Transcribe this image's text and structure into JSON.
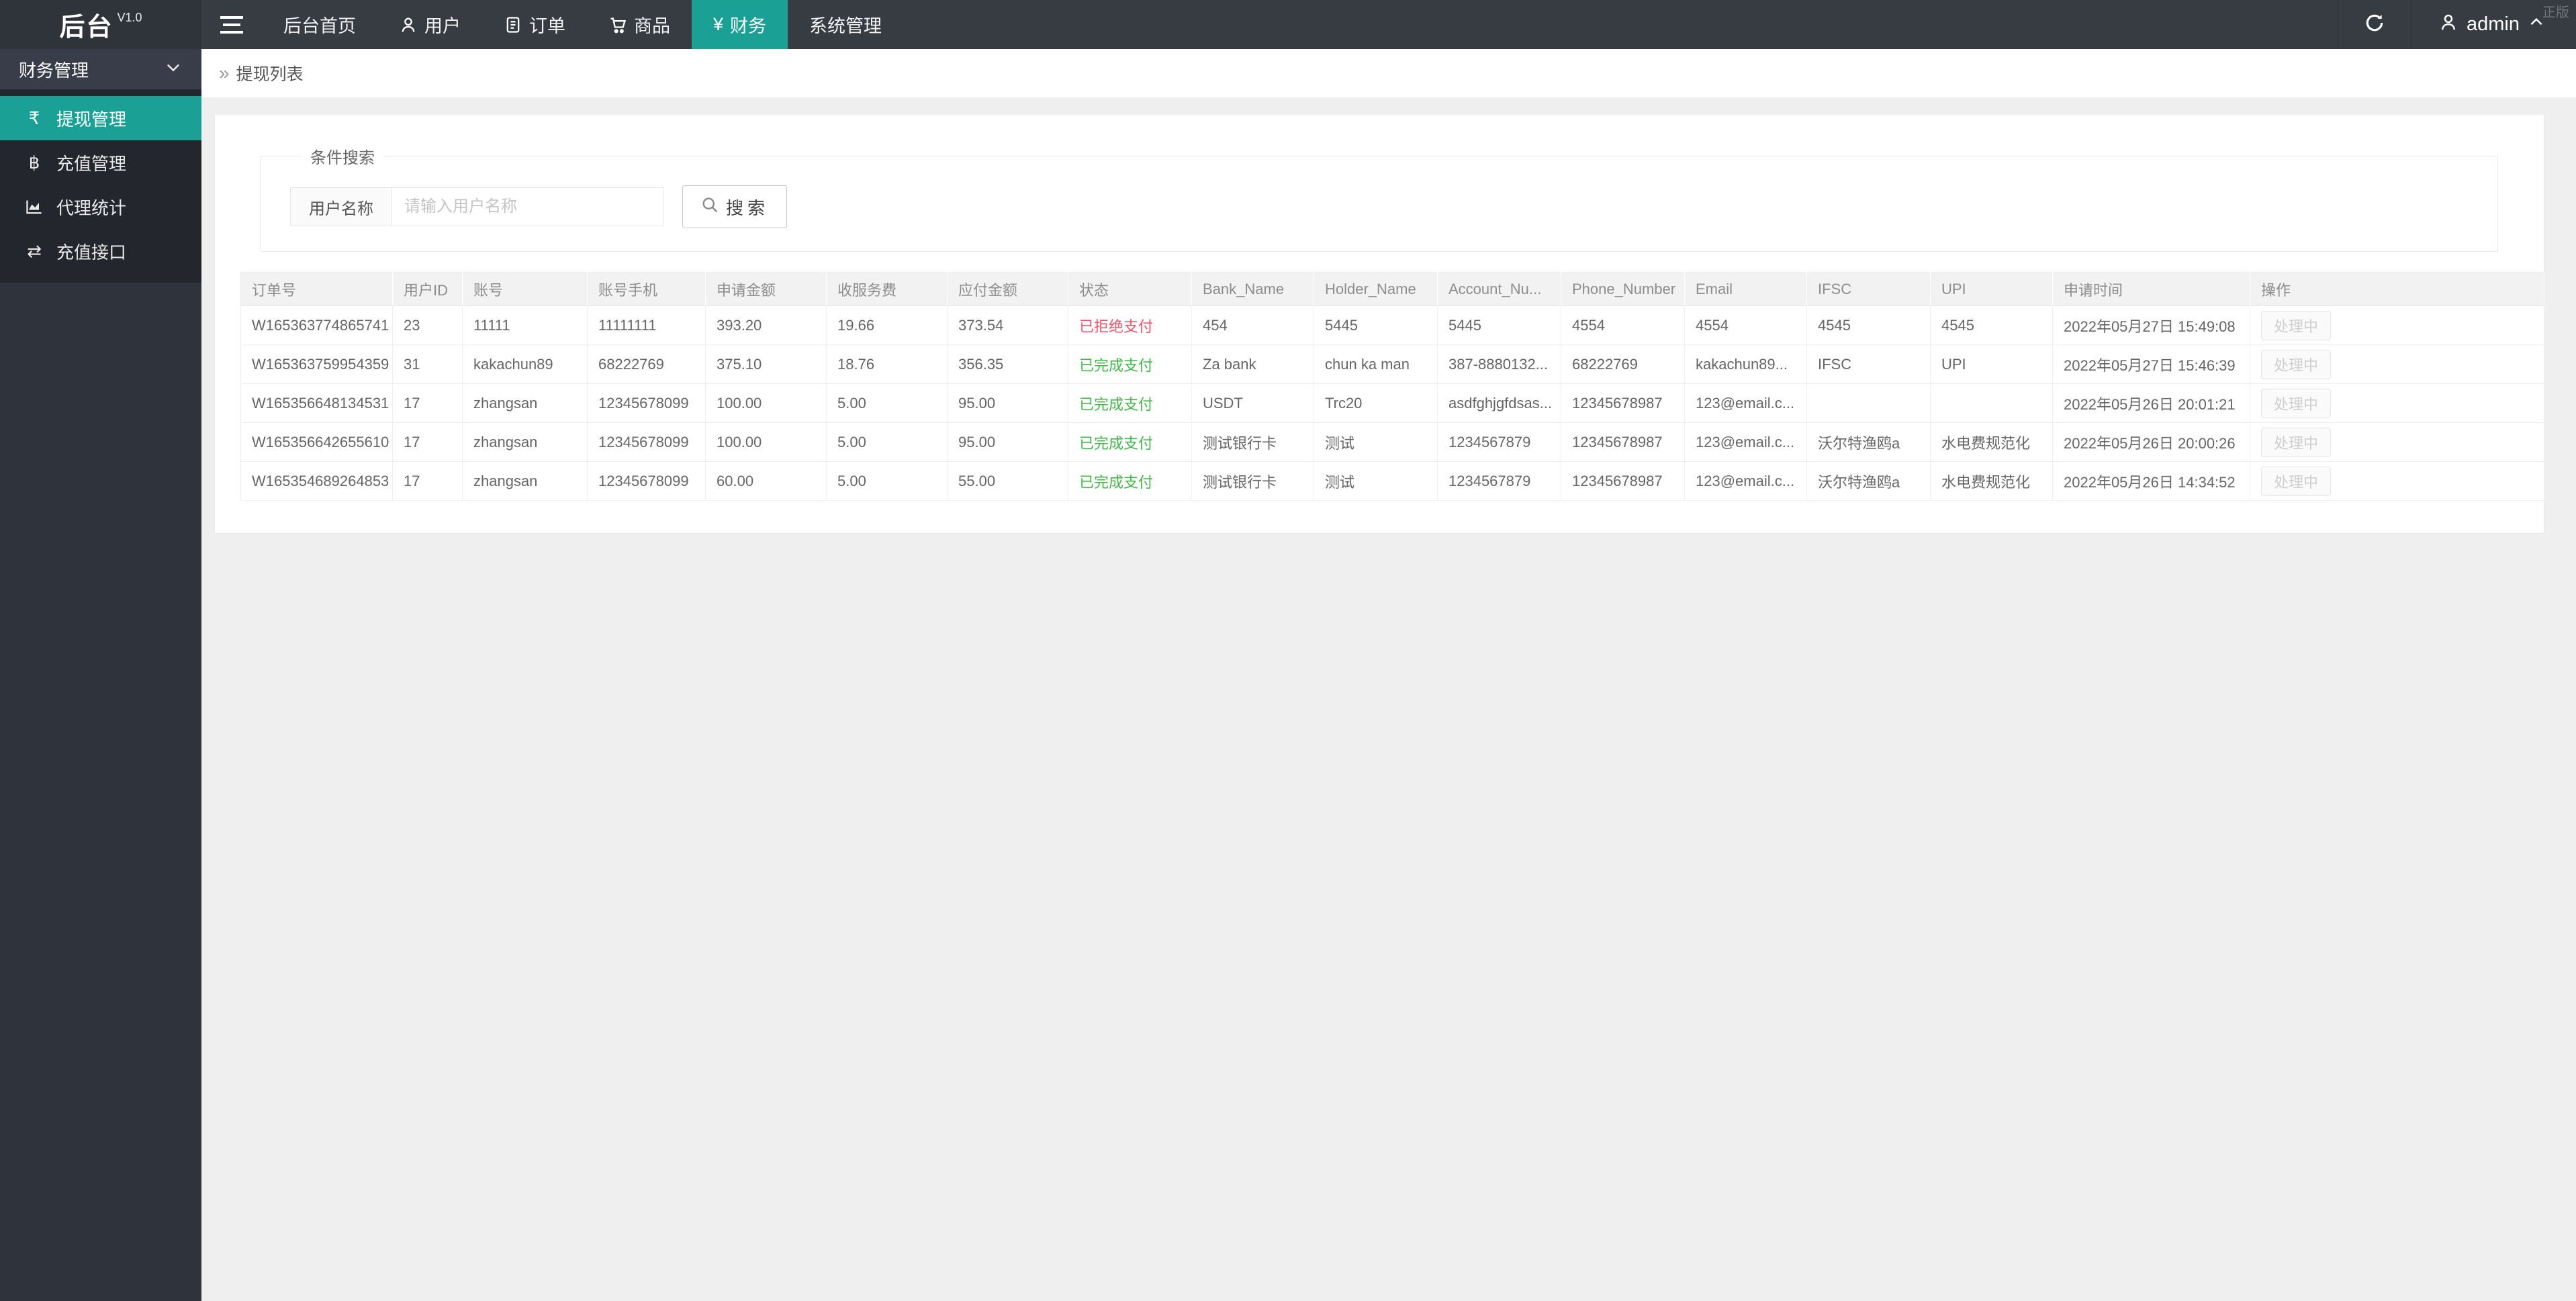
{
  "app": {
    "logo_text": "后台",
    "version": "V1.0",
    "watermark": "正版"
  },
  "colors": {
    "accent": "#1AA094",
    "status_success": "#44B549",
    "status_danger": "#F4516C"
  },
  "navbar": {
    "menu": [
      {
        "label": "后台首页",
        "icon": "",
        "active": false
      },
      {
        "label": "用户",
        "icon": "user-icon",
        "active": false
      },
      {
        "label": "订单",
        "icon": "document-icon",
        "active": false
      },
      {
        "label": "商品",
        "icon": "cart-icon",
        "active": false
      },
      {
        "label": "财务",
        "icon": "yen-icon",
        "active": true
      },
      {
        "label": "系统管理",
        "icon": "",
        "active": false
      }
    ],
    "user": {
      "name": "admin"
    }
  },
  "sidebar": {
    "section": {
      "label": "财务管理"
    },
    "items": [
      {
        "label": "提现管理",
        "icon": "rupee-icon",
        "active": true
      },
      {
        "label": "充值管理",
        "icon": "baht-icon",
        "active": false
      },
      {
        "label": "代理统计",
        "icon": "chart-icon",
        "active": false
      },
      {
        "label": "充值接口",
        "icon": "exchange-icon",
        "active": false
      }
    ]
  },
  "breadcrumb": {
    "title": "提现列表"
  },
  "search": {
    "legend": "条件搜索",
    "field_label": "用户名称",
    "placeholder": "请输入用户名称",
    "button": "搜索"
  },
  "table": {
    "headers": [
      "订单号",
      "用户ID",
      "账号",
      "账号手机",
      "申请金额",
      "收服务费",
      "应付金额",
      "状态",
      "Bank_Name",
      "Holder_Name",
      "Account_Nu...",
      "Phone_Number",
      "Email",
      "IFSC",
      "UPI",
      "申请时间",
      "操作"
    ],
    "rows": [
      {
        "order_no": "W165363774865741",
        "user_id": "23",
        "account": "11111",
        "phone": "11111111",
        "apply_amount": "393.20",
        "service_fee": "19.66",
        "payable": "373.54",
        "status": "已拒绝支付",
        "status_type": "danger",
        "bank_name": "454",
        "holder_name": "5445",
        "account_number": "5445",
        "phone_number": "4554",
        "email": "4554",
        "ifsc": "4545",
        "upi": "4545",
        "apply_time": "2022年05月27日 15:49:08",
        "action": "处理中"
      },
      {
        "order_no": "W165363759954359",
        "user_id": "31",
        "account": "kakachun89",
        "phone": "68222769",
        "apply_amount": "375.10",
        "service_fee": "18.76",
        "payable": "356.35",
        "status": "已完成支付",
        "status_type": "success",
        "bank_name": "Za bank",
        "holder_name": "chun ka man",
        "account_number": "387-8880132...",
        "phone_number": "68222769",
        "email": "kakachun89...",
        "ifsc": "IFSC",
        "upi": "UPI",
        "apply_time": "2022年05月27日 15:46:39",
        "action": "处理中"
      },
      {
        "order_no": "W165356648134531",
        "user_id": "17",
        "account": "zhangsan",
        "phone": "12345678099",
        "apply_amount": "100.00",
        "service_fee": "5.00",
        "payable": "95.00",
        "status": "已完成支付",
        "status_type": "success",
        "bank_name": "USDT",
        "holder_name": "Trc20",
        "account_number": "asdfghjgfdsas...",
        "phone_number": "12345678987",
        "email": "123@email.c...",
        "ifsc": "",
        "upi": "",
        "apply_time": "2022年05月26日 20:01:21",
        "action": "处理中"
      },
      {
        "order_no": "W165356642655610",
        "user_id": "17",
        "account": "zhangsan",
        "phone": "12345678099",
        "apply_amount": "100.00",
        "service_fee": "5.00",
        "payable": "95.00",
        "status": "已完成支付",
        "status_type": "success",
        "bank_name": "测试银行卡",
        "holder_name": "测试",
        "account_number": "1234567879",
        "phone_number": "12345678987",
        "email": "123@email.c...",
        "ifsc": "沃尔特渔鸥a",
        "upi": "水电费规范化",
        "apply_time": "2022年05月26日 20:00:26",
        "action": "处理中"
      },
      {
        "order_no": "W165354689264853",
        "user_id": "17",
        "account": "zhangsan",
        "phone": "12345678099",
        "apply_amount": "60.00",
        "service_fee": "5.00",
        "payable": "55.00",
        "status": "已完成支付",
        "status_type": "success",
        "bank_name": "测试银行卡",
        "holder_name": "测试",
        "account_number": "1234567879",
        "phone_number": "12345678987",
        "email": "123@email.c...",
        "ifsc": "沃尔特渔鸥a",
        "upi": "水电费规范化",
        "apply_time": "2022年05月26日 14:34:52",
        "action": "处理中"
      }
    ]
  }
}
